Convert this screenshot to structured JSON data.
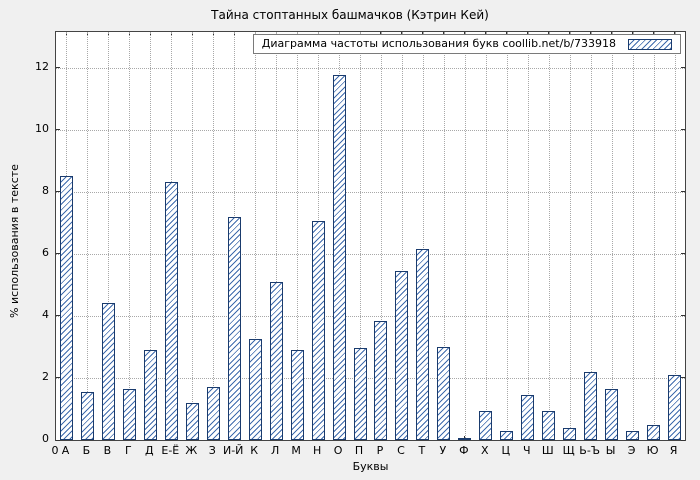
{
  "colors": {
    "background": "#f0f0f0",
    "plot_background": "#ffffff",
    "bar_border": "#1a3b6d",
    "bar_hatch": "#3f6bad",
    "grid": "#a8a8a8",
    "axis": "#444444"
  },
  "chart_data": {
    "type": "bar",
    "title": "Тайна стоптанных башмачков (Кэтрин Кей)",
    "legend_label": "Диаграмма частоты использования букв coollib.net/b/733918",
    "legend_position": "top-right",
    "xlabel": "Буквы",
    "ylabel": "% использования в тексте",
    "x_origin_label": "0",
    "categories": [
      "А",
      "Б",
      "В",
      "Г",
      "Д",
      "Е-Ё",
      "Ж",
      "З",
      "И-Й",
      "К",
      "Л",
      "М",
      "Н",
      "О",
      "П",
      "Р",
      "С",
      "Т",
      "У",
      "Ф",
      "Х",
      "Ц",
      "Ч",
      "Ш",
      "Щ",
      "Ь-Ъ",
      "Ы",
      "Э",
      "Ю",
      "Я"
    ],
    "values": [
      8.5,
      1.55,
      4.4,
      1.65,
      2.9,
      8.3,
      1.2,
      1.7,
      7.2,
      3.25,
      5.1,
      2.9,
      7.05,
      11.75,
      2.95,
      3.85,
      5.45,
      6.15,
      3.0,
      0.05,
      0.95,
      0.3,
      1.45,
      0.95,
      0.38,
      2.2,
      1.65,
      0.3,
      0.5,
      2.1
    ],
    "yticks": [
      0,
      2,
      4,
      6,
      8,
      10,
      12
    ],
    "ylim": [
      0,
      13.15
    ],
    "grid": true,
    "bar_style": "hatched"
  }
}
